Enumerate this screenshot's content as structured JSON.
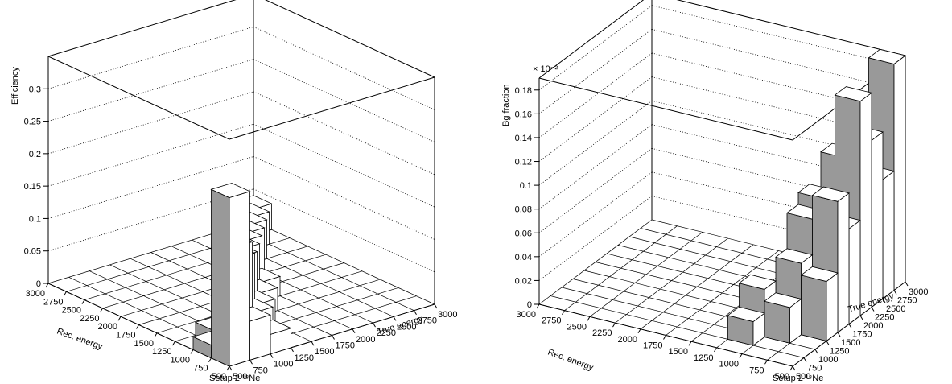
{
  "chart_data": [
    {
      "type": "lego",
      "title": "Setup 2 ¹⁸Ne",
      "xlabel": "True energy",
      "ylabel": "Rec. energy",
      "zlabel": "Efficiency",
      "color": "#999999",
      "grid": true,
      "xlim": [
        500,
        3000
      ],
      "ylim": [
        500,
        3000
      ],
      "zlim": [
        0,
        0.35
      ],
      "xticks": [
        500,
        750,
        1000,
        1250,
        1500,
        1750,
        2000,
        2250,
        2500,
        2750,
        3000
      ],
      "yticks": [
        500,
        750,
        1000,
        1250,
        1500,
        1750,
        2000,
        2250,
        2500,
        2750,
        3000
      ],
      "zticks": [
        0,
        0.05,
        0.1,
        0.15,
        0.2,
        0.25,
        0.3
      ],
      "x": [
        500,
        750,
        1000,
        1250,
        1500,
        1750,
        2000,
        2250,
        2500,
        2750,
        750,
        1000,
        1250,
        1500,
        1750,
        500,
        1000,
        750
      ],
      "y": [
        500,
        750,
        1000,
        1250,
        1500,
        1750,
        2000,
        2250,
        2500,
        2750,
        500,
        750,
        1000,
        1250,
        1500,
        750,
        500,
        1000
      ],
      "values": [
        0.26,
        0.16,
        0.12,
        0.1,
        0.09,
        0.08,
        0.07,
        0.06,
        0.05,
        0.04,
        0.06,
        0.05,
        0.04,
        0.035,
        0.03,
        0.02,
        0.03,
        0.02
      ]
    },
    {
      "type": "lego",
      "title": "Setup 2 ¹⁸Ne",
      "xlabel": "True energy",
      "ylabel": "Rec. energy",
      "zlabel": "Bg fraction",
      "exponent_label": "× 10⁻²",
      "color": "#999999",
      "grid": true,
      "xlim": [
        500,
        3000
      ],
      "ylim": [
        500,
        3000
      ],
      "zlim": [
        0,
        0.19
      ],
      "xticks": [
        500,
        750,
        1000,
        1250,
        1500,
        1750,
        2000,
        2250,
        2500,
        2750,
        3000
      ],
      "yticks": [
        500,
        750,
        1000,
        1250,
        1500,
        1750,
        2000,
        2250,
        2500,
        2750,
        3000
      ],
      "zticks": [
        0,
        0.02,
        0.04,
        0.06,
        0.08,
        0.1,
        0.12,
        0.14,
        0.16,
        0.18
      ],
      "x": [
        2750,
        2500,
        2250,
        2000,
        1750,
        1500,
        1250,
        2750,
        2250,
        2000,
        1750,
        1500,
        1250,
        1000,
        1000,
        1250,
        750
      ],
      "y": [
        500,
        500,
        500,
        500,
        500,
        500,
        500,
        750,
        750,
        750,
        750,
        750,
        750,
        750,
        1000,
        1000,
        1000
      ],
      "values": [
        0.19,
        0.1,
        0.14,
        0.18,
        0.08,
        0.11,
        0.05,
        0.1,
        0.12,
        0.06,
        0.1,
        0.09,
        0.06,
        0.03,
        0.04,
        0.02,
        0.02
      ]
    }
  ]
}
